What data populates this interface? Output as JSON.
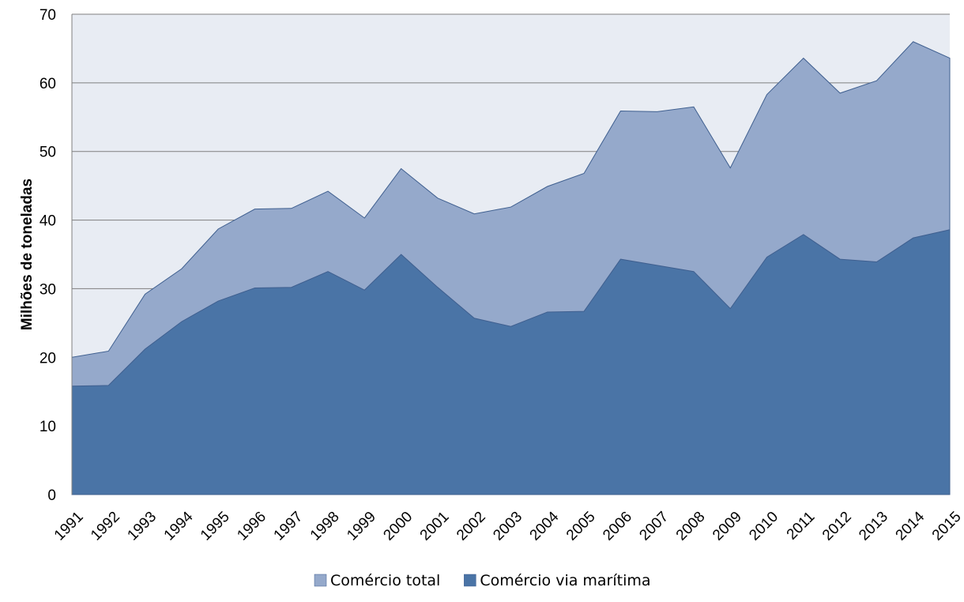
{
  "chart_data": {
    "type": "area",
    "title": "",
    "xlabel": "",
    "ylabel": "Milhões de toneladas",
    "ylim": [
      0,
      70
    ],
    "yticks": [
      0,
      10,
      20,
      30,
      40,
      50,
      60,
      70
    ],
    "grid": true,
    "legend_position": "bottom",
    "categories": [
      "1991",
      "1992",
      "1993",
      "1994",
      "1995",
      "1996",
      "1997",
      "1998",
      "1999",
      "2000",
      "2001",
      "2002",
      "2003",
      "2004",
      "2005",
      "2006",
      "2007",
      "2008",
      "2009",
      "2010",
      "2011",
      "2012",
      "2013",
      "2014",
      "2015"
    ],
    "series": [
      {
        "name": "Comércio total",
        "color": "#95a9cb",
        "values": [
          20.0,
          20.9,
          29.2,
          32.9,
          38.7,
          41.6,
          41.7,
          44.2,
          40.3,
          47.5,
          43.2,
          40.9,
          41.9,
          44.9,
          46.8,
          55.9,
          55.8,
          56.5,
          47.6,
          58.3,
          63.6,
          58.5,
          60.3,
          66.0,
          63.6
        ]
      },
      {
        "name": "Comércio via marítima",
        "color": "#4a74a6",
        "values": [
          15.8,
          15.9,
          21.2,
          25.2,
          28.2,
          30.1,
          30.2,
          32.5,
          29.8,
          35.0,
          30.2,
          25.7,
          24.5,
          26.6,
          26.7,
          34.3,
          33.4,
          32.5,
          27.1,
          34.6,
          37.9,
          34.3,
          33.9,
          37.4,
          38.6
        ]
      }
    ],
    "plot_background": "#e8ecf3",
    "grid_color": "#7f7f7f",
    "outline_color": "#3f5f8f"
  }
}
